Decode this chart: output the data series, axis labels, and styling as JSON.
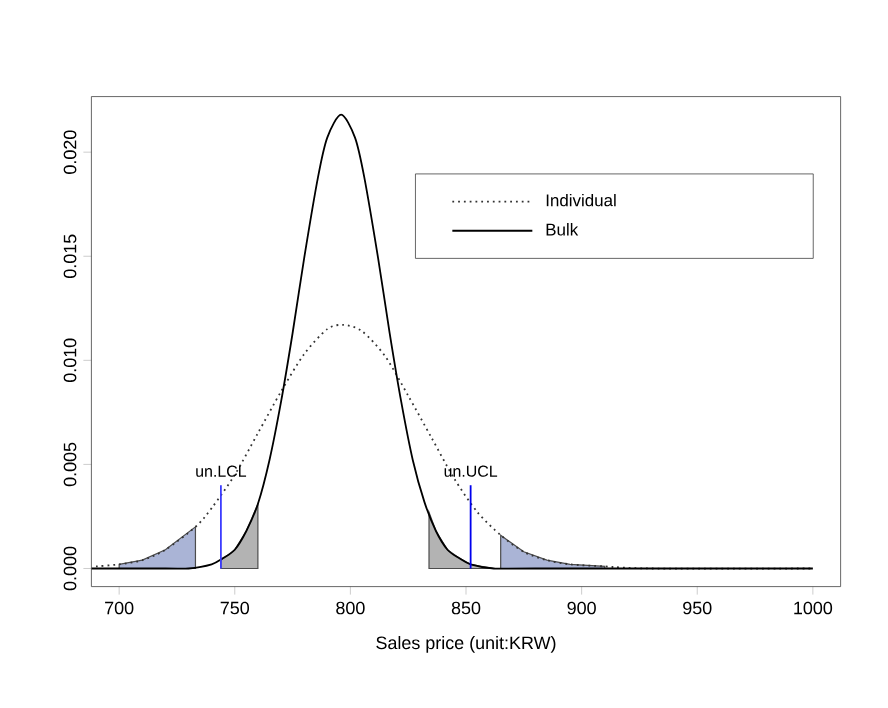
{
  "chart_data": {
    "type": "line",
    "xlabel": "Sales price (unit:KRW)",
    "xlim": [
      688,
      1012
    ],
    "ylim": [
      -0.00087,
      0.02267
    ],
    "xticks": [
      700,
      750,
      800,
      850,
      900,
      950,
      1000
    ],
    "yticks": [
      {
        "value": 0,
        "label": "0.000"
      },
      {
        "value": 0.005,
        "label": "0.005"
      },
      {
        "value": 0.01,
        "label": "0.010"
      },
      {
        "value": 0.015,
        "label": "0.015"
      },
      {
        "value": 0.02,
        "label": "0.020"
      }
    ],
    "legend": "top right",
    "grid": false,
    "series": [
      {
        "type": "area",
        "color": "#aab4d6",
        "x": [
          700,
          710,
          720,
          733
        ],
        "values": [
          0.0002,
          0.0004,
          0.0009,
          0.002
        ]
      },
      {
        "type": "area",
        "color": "#b3b3b3",
        "x": [
          744,
          750,
          755,
          760
        ],
        "values": [
          0.0004,
          0.0009,
          0.0018,
          0.0031
        ]
      },
      {
        "type": "area",
        "color": "#b3b3b3",
        "x": [
          834,
          837,
          842,
          847,
          852,
          862
        ],
        "values": [
          0.0027,
          0.0018,
          0.0009,
          0.0005,
          0.0002,
          0
        ]
      },
      {
        "type": "area",
        "color": "#aab4d6",
        "x": [
          865,
          875,
          885,
          895,
          910
        ],
        "values": [
          0.0016,
          0.0008,
          0.0004,
          0.0002,
          0.0001
        ]
      },
      {
        "name": "Individual",
        "line_style": "dotted",
        "color": "#333333",
        "x": [
          690,
          700,
          710,
          720,
          733,
          740,
          750,
          760,
          770,
          780,
          790,
          797,
          805,
          815,
          825,
          835,
          845,
          855,
          865,
          875,
          885,
          895,
          910,
          930,
          1000
        ],
        "values": [
          0.0001,
          0.0002,
          0.0004,
          0.0009,
          0.002,
          0.0029,
          0.0045,
          0.0065,
          0.0085,
          0.0103,
          0.0115,
          0.0117,
          0.0114,
          0.0102,
          0.0083,
          0.0063,
          0.0043,
          0.0027,
          0.0016,
          0.0008,
          0.0004,
          0.0002,
          0.0001,
          0,
          0
        ]
      },
      {
        "name": "Bulk",
        "line_style": "solid",
        "color": "#000000",
        "x": [
          688,
          720,
          730,
          740,
          745,
          750,
          755,
          760,
          765,
          770,
          775,
          780,
          786,
          790,
          796,
          802,
          806,
          812,
          817,
          822,
          827,
          832,
          837,
          842,
          847,
          852,
          862,
          880,
          1000
        ],
        "values": [
          0,
          0,
          0,
          0.0002,
          0.0005,
          0.0009,
          0.0018,
          0.0031,
          0.0052,
          0.008,
          0.0113,
          0.0149,
          0.0188,
          0.0207,
          0.0218,
          0.0207,
          0.0188,
          0.0149,
          0.0113,
          0.008,
          0.0052,
          0.0032,
          0.0018,
          0.0009,
          0.0005,
          0.0002,
          0,
          0,
          0
        ]
      },
      {
        "line_style": "solid",
        "color": "#3c3cff",
        "x": [
          744,
          744
        ],
        "values": [
          0.004,
          0
        ]
      },
      {
        "line_style": "solid",
        "color": "#0000ee",
        "x": [
          852,
          852
        ],
        "values": [
          0.004,
          0
        ]
      }
    ],
    "annotations": [
      {
        "text": "un.LCL",
        "x": 744,
        "y": 0.004
      },
      {
        "text": "un.UCL",
        "x": 852,
        "y": 0.004
      }
    ]
  }
}
